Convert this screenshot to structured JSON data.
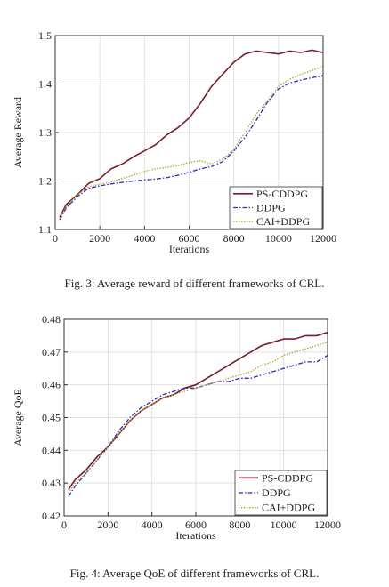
{
  "chart_data": [
    {
      "type": "line",
      "xlabel": "Iterations",
      "ylabel": "Average Reward",
      "xlim": [
        0,
        12000
      ],
      "ylim": [
        1.1,
        1.5
      ],
      "xticks": [
        0,
        2000,
        4000,
        6000,
        8000,
        10000,
        12000
      ],
      "yticks": [
        1.1,
        1.2,
        1.3,
        1.4,
        1.5
      ],
      "grid": true,
      "legend_position": "bottom-right",
      "x": [
        200,
        500,
        1000,
        1500,
        2000,
        2500,
        3000,
        3500,
        4000,
        4500,
        5000,
        5500,
        6000,
        6500,
        7000,
        7500,
        8000,
        8500,
        9000,
        9500,
        10000,
        10500,
        11000,
        11500,
        12000
      ],
      "series": [
        {
          "name": "PS-CDDPG",
          "color": "#7b1c2a",
          "style": "solid",
          "values": [
            1.125,
            1.152,
            1.172,
            1.195,
            1.205,
            1.225,
            1.235,
            1.25,
            1.262,
            1.275,
            1.295,
            1.31,
            1.33,
            1.36,
            1.395,
            1.42,
            1.445,
            1.462,
            1.468,
            1.465,
            1.462,
            1.468,
            1.465,
            1.47,
            1.465
          ]
        },
        {
          "name": "DDPG",
          "color": "#2a2ac8",
          "style": "dashdot",
          "values": [
            1.12,
            1.145,
            1.168,
            1.185,
            1.19,
            1.194,
            1.197,
            1.2,
            1.202,
            1.204,
            1.207,
            1.212,
            1.218,
            1.225,
            1.23,
            1.24,
            1.262,
            1.29,
            1.325,
            1.362,
            1.39,
            1.402,
            1.408,
            1.413,
            1.417
          ]
        },
        {
          "name": "CAI+DDPG",
          "color": "#b8a12a",
          "style": "dotted",
          "values": [
            1.122,
            1.148,
            1.172,
            1.188,
            1.193,
            1.198,
            1.205,
            1.212,
            1.22,
            1.225,
            1.228,
            1.232,
            1.238,
            1.242,
            1.235,
            1.245,
            1.265,
            1.3,
            1.338,
            1.365,
            1.395,
            1.41,
            1.42,
            1.428,
            1.437
          ]
        }
      ]
    },
    {
      "type": "line",
      "xlabel": "Iterations",
      "ylabel": "Average QoE",
      "xlim": [
        0,
        12000
      ],
      "ylim": [
        0.42,
        0.48
      ],
      "xticks": [
        0,
        2000,
        4000,
        6000,
        8000,
        10000,
        12000
      ],
      "yticks": [
        0.42,
        0.43,
        0.44,
        0.45,
        0.46,
        0.47,
        0.48
      ],
      "grid": true,
      "legend_position": "bottom-right",
      "x": [
        200,
        500,
        1000,
        1500,
        2000,
        2500,
        3000,
        3500,
        4000,
        4500,
        5000,
        5500,
        6000,
        6500,
        7000,
        7500,
        8000,
        8500,
        9000,
        9500,
        10000,
        10500,
        11000,
        11500,
        12000
      ],
      "series": [
        {
          "name": "PS-CDDPG",
          "color": "#7b1c2a",
          "style": "solid",
          "values": [
            0.428,
            0.431,
            0.434,
            0.438,
            0.441,
            0.445,
            0.449,
            0.452,
            0.454,
            0.456,
            0.457,
            0.459,
            0.46,
            0.462,
            0.464,
            0.466,
            0.468,
            0.47,
            0.472,
            0.473,
            0.474,
            0.474,
            0.475,
            0.475,
            0.476
          ]
        },
        {
          "name": "DDPG",
          "color": "#2a2ac8",
          "style": "dashdot",
          "values": [
            0.426,
            0.429,
            0.433,
            0.437,
            0.441,
            0.446,
            0.45,
            0.453,
            0.455,
            0.457,
            0.458,
            0.459,
            0.459,
            0.46,
            0.461,
            0.461,
            0.462,
            0.462,
            0.463,
            0.464,
            0.465,
            0.466,
            0.467,
            0.467,
            0.469
          ]
        },
        {
          "name": "CAI+DDPG",
          "color": "#b8a12a",
          "style": "dotted",
          "values": [
            0.427,
            0.43,
            0.433,
            0.437,
            0.441,
            0.445,
            0.449,
            0.452,
            0.454,
            0.456,
            0.457,
            0.458,
            0.459,
            0.46,
            0.461,
            0.462,
            0.463,
            0.464,
            0.466,
            0.467,
            0.469,
            0.47,
            0.471,
            0.472,
            0.473
          ]
        }
      ]
    }
  ],
  "captions": {
    "fig1": "Fig. 3: Average reward of different frameworks of CRL.",
    "fig2": "Fig. 4: Average QoE of different frameworks of CRL."
  }
}
